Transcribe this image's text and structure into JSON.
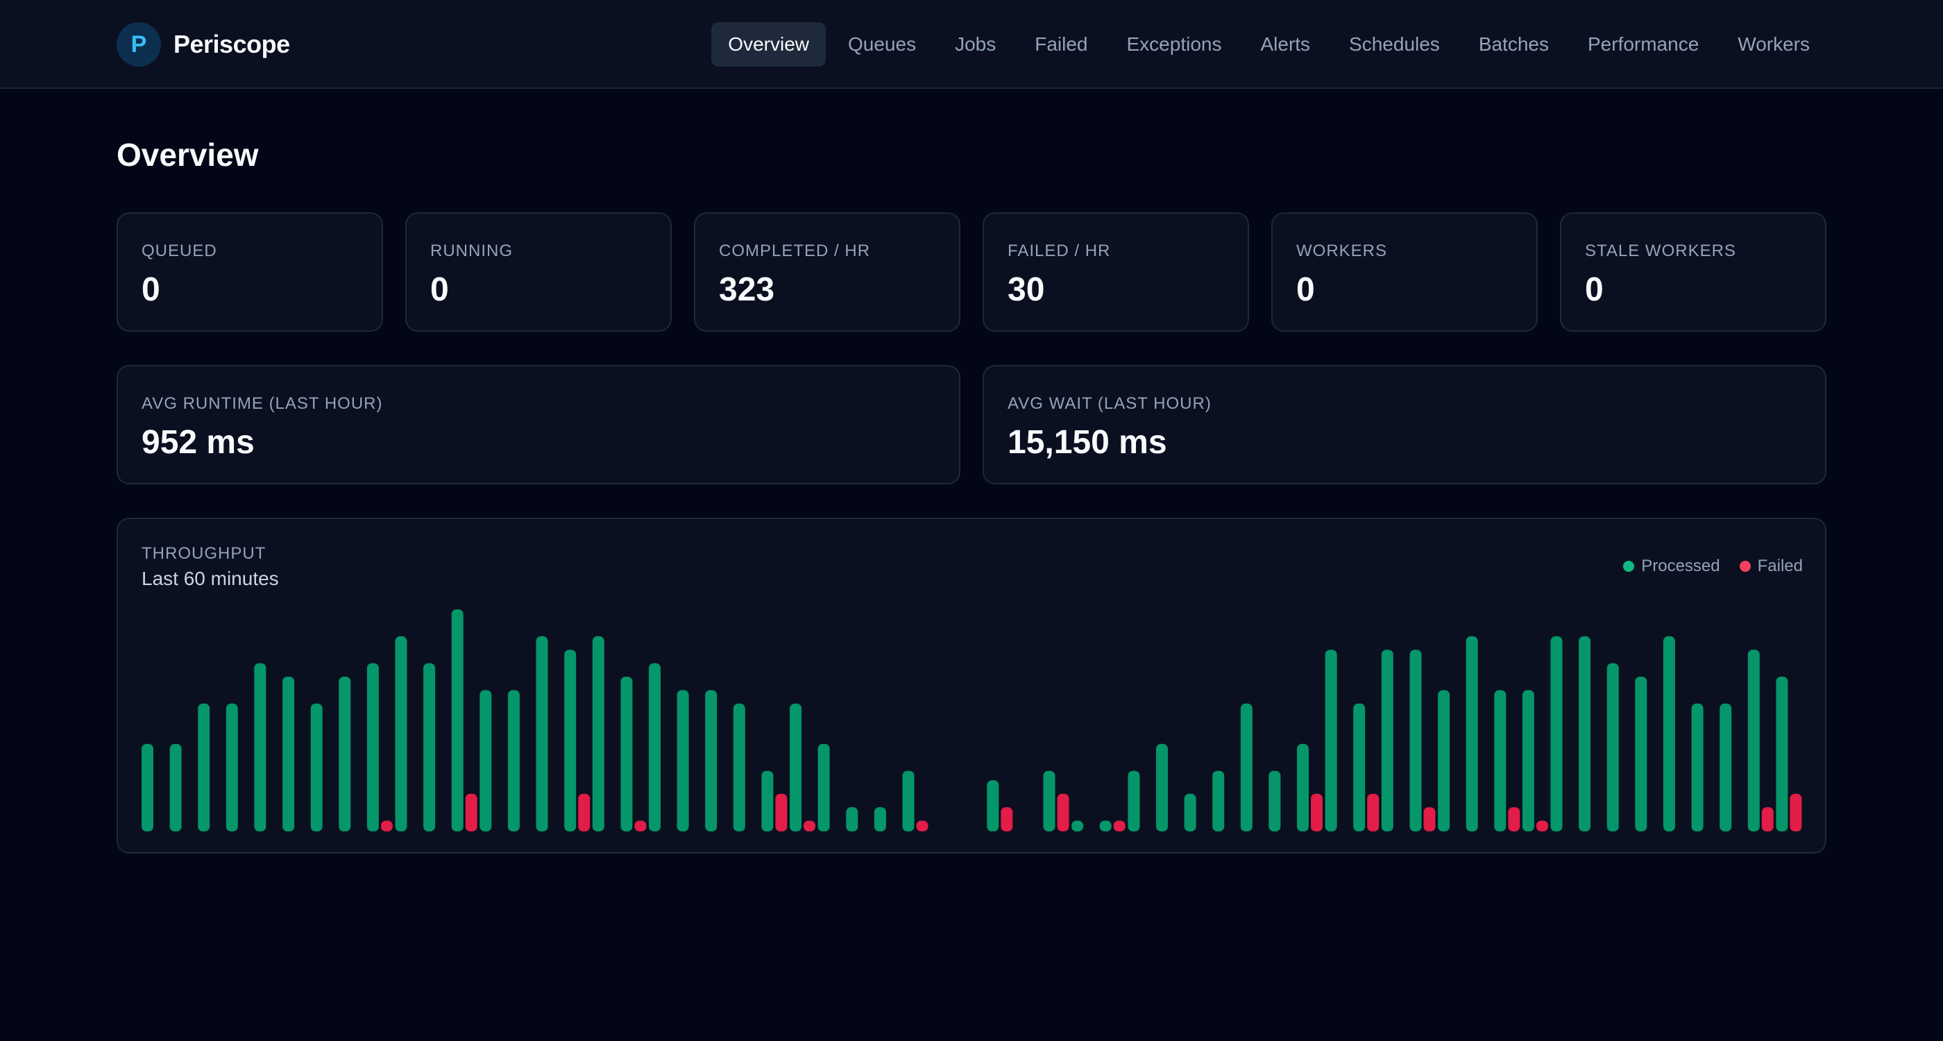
{
  "app": {
    "logo_letter": "P",
    "name": "Periscope"
  },
  "nav": {
    "items": [
      {
        "label": "Overview",
        "active": true
      },
      {
        "label": "Queues"
      },
      {
        "label": "Jobs"
      },
      {
        "label": "Failed"
      },
      {
        "label": "Exceptions"
      },
      {
        "label": "Alerts"
      },
      {
        "label": "Schedules"
      },
      {
        "label": "Batches"
      },
      {
        "label": "Performance"
      },
      {
        "label": "Workers"
      }
    ]
  },
  "page": {
    "title": "Overview"
  },
  "stats": [
    {
      "label": "QUEUED",
      "value": "0"
    },
    {
      "label": "RUNNING",
      "value": "0"
    },
    {
      "label": "COMPLETED / HR",
      "value": "323"
    },
    {
      "label": "FAILED / HR",
      "value": "30"
    },
    {
      "label": "WORKERS",
      "value": "0"
    },
    {
      "label": "STALE WORKERS",
      "value": "0"
    }
  ],
  "averages": [
    {
      "label": "AVG RUNTIME (LAST HOUR)",
      "value": "952 ms"
    },
    {
      "label": "AVG WAIT (LAST HOUR)",
      "value": "15,150 ms"
    }
  ],
  "throughput": {
    "title": "THROUGHPUT",
    "subtitle": "Last 60 minutes",
    "legend": [
      {
        "label": "Processed",
        "color": "#10b981"
      },
      {
        "label": "Failed",
        "color": "#f43f5e"
      }
    ]
  },
  "chart_data": {
    "type": "bar",
    "colors": {
      "processed": "#059669",
      "failed": "#e11d48"
    },
    "series": [
      {
        "name": "Processed",
        "values": [
          6.5,
          6.5,
          9.5,
          9.5,
          12.5,
          11.5,
          9.5,
          11.5,
          12.5,
          14.5,
          12.5,
          16.5,
          10.5,
          10.5,
          14.5,
          13.5,
          14.5,
          11.5,
          12.5,
          10.5,
          10.5,
          9.5,
          4.5,
          9.5,
          6.5,
          1.8,
          1.8,
          4.5,
          0,
          0,
          3.8,
          0,
          4.5,
          0.8,
          0.8,
          4.5,
          6.5,
          2.8,
          4.5,
          9.5,
          4.5,
          6.5,
          13.5,
          9.5,
          13.5,
          13.5,
          10.5,
          14.5,
          10.5,
          10.5,
          14.5,
          14.5,
          12.5,
          11.5,
          14.5,
          9.5,
          9.5,
          13.5,
          11.5
        ]
      },
      {
        "name": "Failed",
        "values": [
          0,
          0,
          0,
          0,
          0,
          0,
          0,
          0,
          0.8,
          0,
          0,
          2.8,
          0,
          0,
          0,
          2.8,
          0,
          0.8,
          0,
          0,
          0,
          0,
          2.8,
          0.8,
          0,
          0,
          0,
          0.8,
          0,
          0,
          1.8,
          0,
          2.8,
          0,
          0.8,
          0,
          0,
          0,
          0,
          0,
          0,
          2.8,
          0,
          2.8,
          0,
          1.8,
          0,
          0,
          1.8,
          0.8,
          0,
          0,
          0,
          0,
          0,
          0,
          0,
          1.8,
          2.8
        ]
      }
    ],
    "ylim": [
      0,
      16.5
    ],
    "grid": false,
    "legend_position": "top-right"
  }
}
